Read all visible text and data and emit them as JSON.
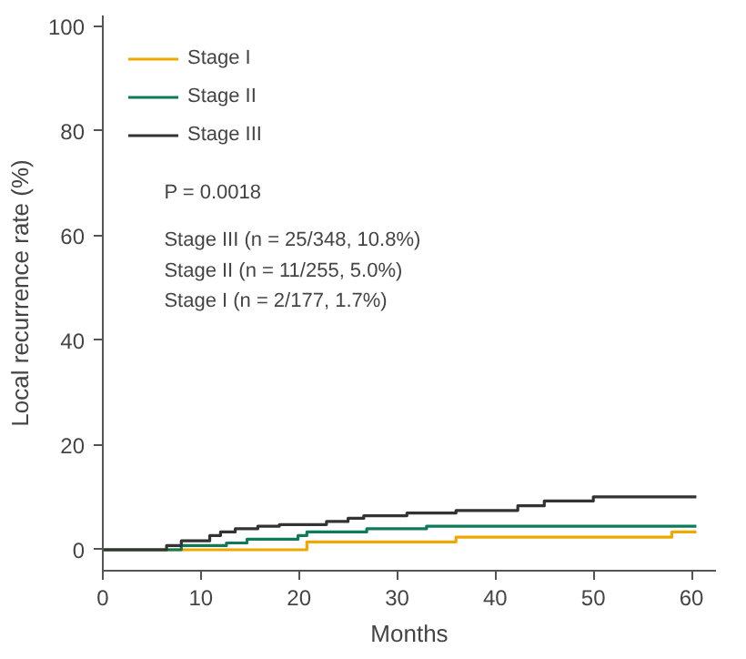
{
  "chart_data": {
    "type": "step",
    "xlabel": "Months",
    "ylabel": "Local recurrence rate (%)",
    "xlim": [
      0,
      62.5
    ],
    "ylim": [
      -4,
      102
    ],
    "xticks": [
      0,
      10,
      20,
      30,
      40,
      50,
      60
    ],
    "yticks": [
      0,
      20,
      40,
      60,
      80,
      100
    ],
    "legend": "top left",
    "grid": false,
    "series": [
      {
        "name": "Stage I",
        "color": "#f0a800",
        "x": [
          0,
          20.8,
          36,
          58,
          60.5
        ],
        "values": [
          0,
          1.5,
          2.4,
          3.4,
          3.4
        ]
      },
      {
        "name": "Stage II",
        "color": "#0e7a5a",
        "x": [
          0,
          8,
          12.6,
          14.7,
          19.9,
          20.8,
          26.9,
          33,
          60.5
        ],
        "values": [
          0,
          0.8,
          1.3,
          2.0,
          2.7,
          3.4,
          4.0,
          4.5,
          4.5
        ]
      },
      {
        "name": "Stage III",
        "color": "#333333",
        "x": [
          0,
          6.5,
          8,
          10.9,
          12,
          13.5,
          15.8,
          18,
          22.8,
          25,
          26.6,
          31,
          36,
          42.3,
          45,
          50,
          60.5
        ],
        "values": [
          0,
          0.8,
          1.7,
          2.7,
          3.4,
          4.0,
          4.5,
          4.8,
          5.4,
          6.0,
          6.5,
          7.0,
          7.5,
          8.4,
          9.3,
          10.1,
          10.1
        ]
      }
    ],
    "annotations": [
      "P = 0.0018",
      "Stage III (n = 25/348, 10.8%)",
      "Stage II (n = 11/255, 5.0%)",
      "Stage I (n = 2/177, 1.7%)"
    ]
  }
}
